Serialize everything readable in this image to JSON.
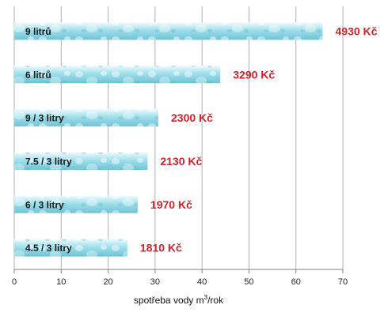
{
  "chart_data": {
    "type": "bar",
    "orientation": "horizontal",
    "categories": [
      "9 litrů",
      "6 litrů",
      "9 / 3 litry",
      "7.5 / 3 litry",
      "6 / 3 litry",
      "4.5 / 3 litry"
    ],
    "values": [
      65.7,
      43.9,
      30.7,
      28.4,
      26.3,
      24.1
    ],
    "value_labels": [
      "4930 Kč",
      "3290 Kč",
      "2300 Kč",
      "2130 Kč",
      "1970 Kč",
      "1810 Kč"
    ],
    "xlabel_main": "spotřeba vody m",
    "xlabel_sup": "3",
    "xlabel_tail": "/rok",
    "xlim": [
      0,
      70
    ],
    "xticks": [
      0,
      10,
      20,
      30,
      40,
      50,
      60,
      70
    ],
    "grid": true,
    "colors": {
      "bar_top": "#eefbfe",
      "bar_mid": "#9fdfeb",
      "bar_bottom": "#6fc3d6",
      "bubble": "#ffffff",
      "value_text": "#d4222a",
      "grid": "#b0b0b0",
      "axis": "#808080"
    }
  }
}
